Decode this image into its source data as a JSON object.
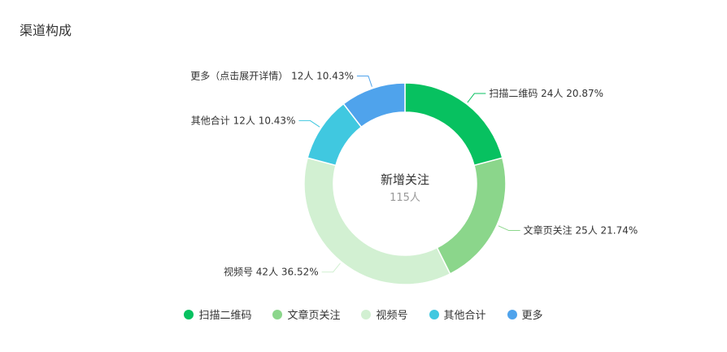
{
  "title": "渠道构成",
  "chart_data": {
    "type": "pie",
    "center_label": "新增关注",
    "center_value": "115人",
    "total": 115,
    "slices": [
      {
        "name": "扫描二维码",
        "value": 24,
        "percent": "20.87%",
        "label": "扫描二维码 24人 20.87%",
        "color": "#07c160"
      },
      {
        "name": "文章页关注",
        "value": 25,
        "percent": "21.74%",
        "label": "文章页关注 25人 21.74%",
        "color": "#8bd68b"
      },
      {
        "name": "视频号",
        "value": 42,
        "percent": "36.52%",
        "label": "视频号 42人 36.52%",
        "color": "#d2f0d2"
      },
      {
        "name": "其他合计",
        "value": 12,
        "percent": "10.43%",
        "label": "其他合计 12人 10.43%",
        "color": "#40c8e0"
      },
      {
        "name": "更多",
        "value": 12,
        "percent": "10.43%",
        "label": "更多（点击展开详情） 12人 10.43%",
        "color": "#4fa3ec"
      }
    ],
    "legend": [
      "扫描二维码",
      "文章页关注",
      "视频号",
      "其他合计",
      "更多"
    ],
    "legend_position": "bottom"
  }
}
